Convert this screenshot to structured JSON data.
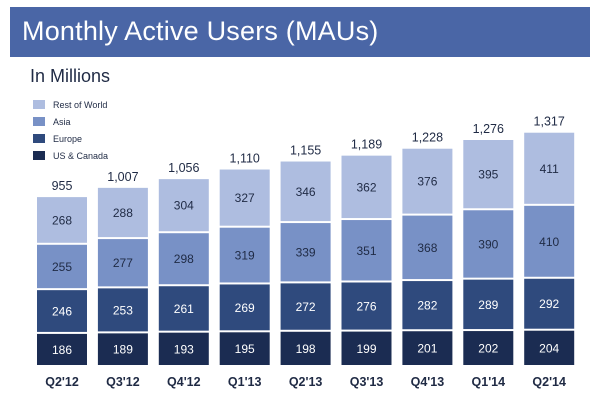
{
  "header": {
    "title": "Monthly Active Users (MAUs)"
  },
  "chart_data": {
    "type": "bar",
    "stacked": true,
    "title": "Monthly Active Users (MAUs)",
    "subtitle": "In Millions",
    "categories": [
      "Q2'12",
      "Q3'12",
      "Q4'12",
      "Q1'13",
      "Q2'13",
      "Q3'13",
      "Q4'13",
      "Q1'14",
      "Q2'14"
    ],
    "totals": [
      955,
      1007,
      1056,
      1110,
      1155,
      1189,
      1228,
      1276,
      1317
    ],
    "series": [
      {
        "name": "US & Canada",
        "color": "#1b2c52",
        "label_color": "#ffffff",
        "values": [
          186,
          189,
          193,
          195,
          198,
          199,
          201,
          202,
          204
        ]
      },
      {
        "name": "Europe",
        "color": "#2f4a7d",
        "label_color": "#ffffff",
        "values": [
          246,
          253,
          261,
          269,
          272,
          276,
          282,
          289,
          292
        ]
      },
      {
        "name": "Asia",
        "color": "#7891c6",
        "label_color": "#1f2a44",
        "values": [
          255,
          277,
          298,
          319,
          339,
          351,
          368,
          390,
          410
        ]
      },
      {
        "name": "Rest of World",
        "color": "#aebde0",
        "label_color": "#1f2a44",
        "values": [
          268,
          288,
          304,
          327,
          346,
          362,
          376,
          395,
          411
        ]
      }
    ],
    "legend_order": [
      "Rest of World",
      "Asia",
      "Europe",
      "US & Canada"
    ],
    "legend_position": "top-left",
    "ylim": [
      0,
      1400
    ],
    "grid": false
  }
}
